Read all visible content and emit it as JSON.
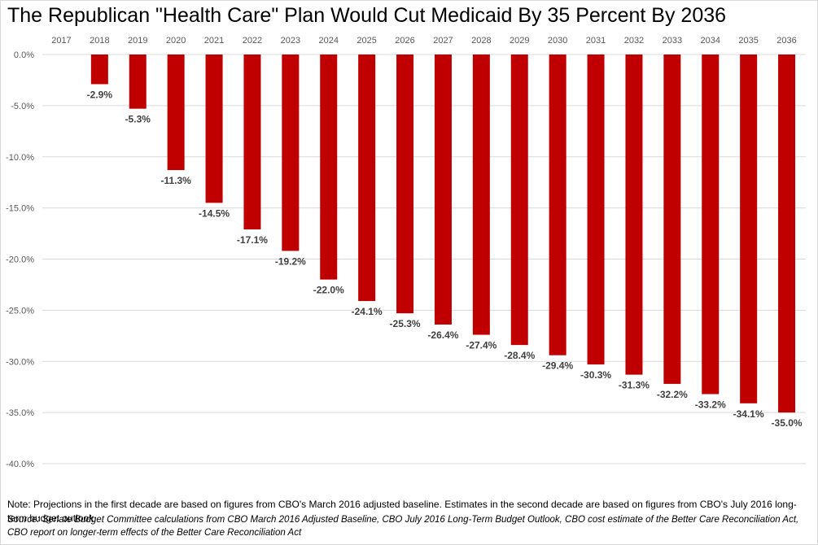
{
  "colors": {
    "bar": "#c00000",
    "grid": "#d9d9d9",
    "axis_text": "#595959",
    "label_text": "#404040"
  },
  "chart_data": {
    "type": "bar",
    "title": "The Republican \"Health Care\" Plan Would Cut Medicaid By 35 Percent By 2036",
    "categories": [
      "2017",
      "2018",
      "2019",
      "2020",
      "2021",
      "2022",
      "2023",
      "2024",
      "2025",
      "2026",
      "2027",
      "2028",
      "2029",
      "2030",
      "2031",
      "2032",
      "2033",
      "2034",
      "2035",
      "2036"
    ],
    "values": [
      null,
      -2.9,
      -5.3,
      -11.3,
      -14.5,
      -17.1,
      -19.2,
      -22.0,
      -24.1,
      -25.3,
      -26.4,
      -27.4,
      -28.4,
      -29.4,
      -30.3,
      -31.3,
      -32.2,
      -33.2,
      -34.1,
      -35.0
    ],
    "value_labels": [
      "",
      "-2.9%",
      "-5.3%",
      "-11.3%",
      "-14.5%",
      "-17.1%",
      "-19.2%",
      "-22.0%",
      "-24.1%",
      "-25.3%",
      "-26.4%",
      "-27.4%",
      "-28.4%",
      "-29.4%",
      "-30.3%",
      "-31.3%",
      "-32.2%",
      "-33.2%",
      "-34.1%",
      "-35.0%"
    ],
    "y_ticks": [
      0,
      -5,
      -10,
      -15,
      -20,
      -25,
      -30,
      -35,
      -40
    ],
    "y_tick_labels": [
      "0.0%",
      "-5.0%",
      "-10.0%",
      "-15.0%",
      "-20.0%",
      "-25.0%",
      "-30.0%",
      "-35.0%",
      "-40.0%"
    ],
    "ylim": [
      -40,
      0
    ],
    "xlabel": "",
    "ylabel": "",
    "grid": true,
    "x_axis_position": "top"
  },
  "note": "Note:  Projections in the first decade are based on figures from CBO's March 2016 adjusted baseline.  Estimates in the second decade are based on figures from CBO's July 2016 long-term budget outlook.",
  "source": "Source:  Senate Budget Committee  calculations from CBO March 2016 Adjusted Baseline, CBO July 2016 Long-Term Budget Outlook, CBO cost estimate of the Better Care Reconciliation Act, CBO report on longer-term  effects  of the Better Care Reconciliation Act"
}
